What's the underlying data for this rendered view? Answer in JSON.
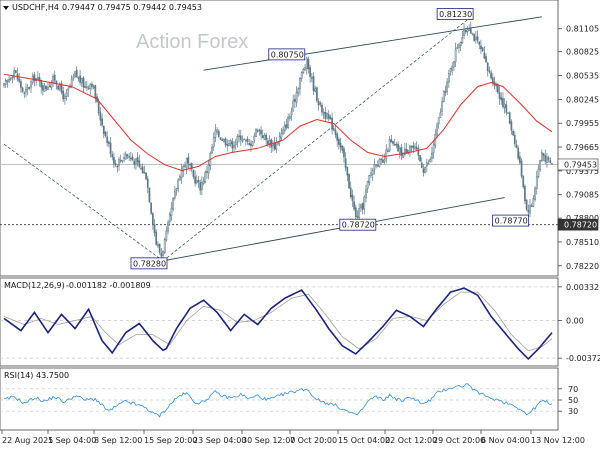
{
  "header": {
    "symbol": "USDCHF,H4",
    "ohlc": "0.79447 0.79475 0.79442 0.79453"
  },
  "watermark": "Action Forex",
  "colors": {
    "candle": "#5a7888",
    "ma": "#e0302a",
    "trendline": "#2a4a52",
    "macd_main": "#1a237e",
    "macd_signal": "#9e9e9e",
    "rsi": "#2f8fdc",
    "label_border": "#1a237e"
  },
  "chart_data": [
    {
      "type": "candlestick",
      "title": "USDCHF,H4",
      "ylim": [
        0.7812,
        0.8143
      ],
      "y_ticks": [
        "0.81105",
        "0.80825",
        "0.80535",
        "0.80245",
        "0.79955",
        "0.79665",
        "0.79375",
        "0.79085",
        "0.78800",
        "0.78510",
        "0.78220"
      ],
      "y_tick_values": [
        0.81105,
        0.80825,
        0.80535,
        0.80245,
        0.79955,
        0.79665,
        0.79375,
        0.79085,
        0.788,
        0.7851,
        0.7822
      ],
      "x_ticks": [
        "22 Aug 2025",
        "1 Sep 04:00",
        "8 Sep 12:00",
        "15 Sep 20:00",
        "23 Sep 04:00",
        "30 Sep 12:00",
        "7 Oct 20:00",
        "15 Oct 04:00",
        "22 Oct 12:00",
        "29 Oct 20:00",
        "6 Nov 04:00",
        "13 Nov 12:00"
      ],
      "current_price": "0.79453",
      "current_price_value": 0.79453,
      "reference_level": "0.78720",
      "reference_level_value": 0.7872,
      "close_path": [
        [
          0,
          0.804
        ],
        [
          6,
          0.806
        ],
        [
          12,
          0.803
        ],
        [
          18,
          0.8052
        ],
        [
          24,
          0.8038
        ],
        [
          30,
          0.805
        ],
        [
          36,
          0.8025
        ],
        [
          42,
          0.8055
        ],
        [
          48,
          0.804
        ],
        [
          52,
          0.8045
        ],
        [
          56,
          0.801
        ],
        [
          60,
          0.798
        ],
        [
          66,
          0.7945
        ],
        [
          72,
          0.7958
        ],
        [
          78,
          0.7948
        ],
        [
          84,
          0.7932
        ],
        [
          87,
          0.789
        ],
        [
          90,
          0.785
        ],
        [
          93,
          0.7835
        ],
        [
          96,
          0.786
        ],
        [
          100,
          0.79
        ],
        [
          104,
          0.7935
        ],
        [
          108,
          0.795
        ],
        [
          112,
          0.793
        ],
        [
          116,
          0.7918
        ],
        [
          120,
          0.7938
        ],
        [
          125,
          0.7985
        ],
        [
          130,
          0.7975
        ],
        [
          135,
          0.797
        ],
        [
          140,
          0.798
        ],
        [
          145,
          0.7968
        ],
        [
          150,
          0.799
        ],
        [
          155,
          0.7975
        ],
        [
          160,
          0.7968
        ],
        [
          165,
          0.7985
        ],
        [
          170,
          0.801
        ],
        [
          175,
          0.805
        ],
        [
          179,
          0.807
        ],
        [
          183,
          0.804
        ],
        [
          187,
          0.8015
        ],
        [
          192,
          0.8
        ],
        [
          196,
          0.7985
        ],
        [
          200,
          0.796
        ],
        [
          204,
          0.792
        ],
        [
          208,
          0.788
        ],
        [
          212,
          0.7895
        ],
        [
          216,
          0.793
        ],
        [
          220,
          0.795
        ],
        [
          224,
          0.7945
        ],
        [
          228,
          0.7972
        ],
        [
          232,
          0.7965
        ],
        [
          236,
          0.7958
        ],
        [
          240,
          0.797
        ],
        [
          244,
          0.796
        ],
        [
          248,
          0.794
        ],
        [
          252,
          0.795
        ],
        [
          256,
          0.799
        ],
        [
          260,
          0.803
        ],
        [
          264,
          0.806
        ],
        [
          268,
          0.809
        ],
        [
          272,
          0.8105
        ],
        [
          275,
          0.8115
        ],
        [
          278,
          0.81
        ],
        [
          282,
          0.8085
        ],
        [
          286,
          0.806
        ],
        [
          290,
          0.8045
        ],
        [
          294,
          0.8025
        ],
        [
          298,
          0.8005
        ],
        [
          302,
          0.7975
        ],
        [
          306,
          0.7935
        ],
        [
          309,
          0.789
        ],
        [
          312,
          0.7895
        ],
        [
          315,
          0.793
        ],
        [
          318,
          0.796
        ],
        [
          321,
          0.795
        ],
        [
          324,
          0.7945
        ]
      ],
      "moving_average": [
        [
          0,
          0.8055
        ],
        [
          20,
          0.8048
        ],
        [
          40,
          0.804
        ],
        [
          55,
          0.8025
        ],
        [
          65,
          0.8
        ],
        [
          75,
          0.7975
        ],
        [
          85,
          0.7958
        ],
        [
          95,
          0.7945
        ],
        [
          105,
          0.7938
        ],
        [
          115,
          0.7943
        ],
        [
          125,
          0.7955
        ],
        [
          135,
          0.796
        ],
        [
          150,
          0.7965
        ],
        [
          165,
          0.7975
        ],
        [
          175,
          0.7992
        ],
        [
          185,
          0.8
        ],
        [
          195,
          0.7995
        ],
        [
          205,
          0.7975
        ],
        [
          215,
          0.796
        ],
        [
          225,
          0.7955
        ],
        [
          240,
          0.796
        ],
        [
          250,
          0.7965
        ],
        [
          260,
          0.7988
        ],
        [
          270,
          0.8018
        ],
        [
          280,
          0.804
        ],
        [
          288,
          0.8045
        ],
        [
          295,
          0.804
        ],
        [
          305,
          0.802
        ],
        [
          315,
          0.7998
        ],
        [
          324,
          0.7985
        ]
      ],
      "trendlines": [
        [
          [
            118,
            0.806
          ],
          [
            318,
            0.8125
          ]
        ],
        [
          [
            94,
            0.7828
          ],
          [
            296,
            0.7905
          ]
        ],
        [
          [
            0,
            0.797
          ],
          [
            94,
            0.7828
          ]
        ],
        [
          [
            94,
            0.7828
          ],
          [
            275,
            0.8123
          ]
        ]
      ],
      "annotations": [
        {
          "text": "0.80750",
          "x": 179,
          "y": 0.8075
        },
        {
          "text": "0.81230",
          "x": 275,
          "y": 0.8123
        },
        {
          "text": "0.78720",
          "x": 208,
          "y": 0.7872
        },
        {
          "text": "0.78770",
          "x": 309,
          "y": 0.7877
        },
        {
          "text": "0.78280",
          "x": 94,
          "y": 0.7828
        }
      ]
    },
    {
      "type": "line",
      "title": "MACD(12,26,9) -0.001182 -0.001809",
      "label": "MACD(12,26,9)",
      "values_text": "-0.001182 -0.001809",
      "ylim": [
        -0.0043,
        0.0038
      ],
      "y_ticks": [
        "0.003321",
        "0.00",
        "-0.003723"
      ],
      "y_tick_values": [
        0.003321,
        0.0,
        -0.003723
      ],
      "series": [
        {
          "values": [
            [
              0,
              0.0002
            ],
            [
              10,
              -0.001
            ],
            [
              18,
              0.0008
            ],
            [
              26,
              -0.0012
            ],
            [
              34,
              0.0006
            ],
            [
              42,
              -0.0008
            ],
            [
              50,
              0.0011
            ],
            [
              58,
              -0.002
            ],
            [
              64,
              -0.0032
            ],
            [
              72,
              -0.0012
            ],
            [
              80,
              -0.0003
            ],
            [
              88,
              -0.002
            ],
            [
              95,
              -0.0031
            ],
            [
              102,
              -0.0008
            ],
            [
              110,
              0.0012
            ],
            [
              118,
              0.002
            ],
            [
              126,
              0.0008
            ],
            [
              134,
              -0.001
            ],
            [
              142,
              0.0006
            ],
            [
              150,
              -0.0004
            ],
            [
              158,
              0.0012
            ],
            [
              166,
              0.0022
            ],
            [
              176,
              0.003
            ],
            [
              184,
              0.0012
            ],
            [
              192,
              -0.0008
            ],
            [
              200,
              -0.0025
            ],
            [
              208,
              -0.0033
            ],
            [
              216,
              -0.002
            ],
            [
              224,
              -0.0006
            ],
            [
              232,
              0.001
            ],
            [
              240,
              0.0004
            ],
            [
              248,
              -0.0006
            ],
            [
              256,
              0.0012
            ],
            [
              264,
              0.0028
            ],
            [
              272,
              0.0032
            ],
            [
              280,
              0.0025
            ],
            [
              288,
              0.0004
            ],
            [
              296,
              -0.0012
            ],
            [
              304,
              -0.0028
            ],
            [
              310,
              -0.0038
            ],
            [
              316,
              -0.0028
            ],
            [
              324,
              -0.0012
            ]
          ]
        },
        {
          "values": [
            [
              0,
              0.0004
            ],
            [
              12,
              -0.0004
            ],
            [
              22,
              0.0002
            ],
            [
              32,
              -0.0004
            ],
            [
              42,
              0.0
            ],
            [
              52,
              0.0004
            ],
            [
              60,
              -0.0012
            ],
            [
              68,
              -0.0024
            ],
            [
              78,
              -0.0014
            ],
            [
              88,
              -0.0014
            ],
            [
              98,
              -0.0024
            ],
            [
              108,
              0.0
            ],
            [
              118,
              0.0014
            ],
            [
              128,
              0.001
            ],
            [
              138,
              -0.0002
            ],
            [
              148,
              0.0
            ],
            [
              158,
              0.0008
            ],
            [
              170,
              0.0022
            ],
            [
              180,
              0.0026
            ],
            [
              190,
              0.0006
            ],
            [
              200,
              -0.0016
            ],
            [
              210,
              -0.0028
            ],
            [
              220,
              -0.0018
            ],
            [
              230,
              0.0002
            ],
            [
              240,
              0.0004
            ],
            [
              250,
              0.0
            ],
            [
              260,
              0.0016
            ],
            [
              270,
              0.0028
            ],
            [
              280,
              0.0028
            ],
            [
              290,
              0.001
            ],
            [
              300,
              -0.0014
            ],
            [
              310,
              -0.003
            ],
            [
              318,
              -0.0026
            ],
            [
              324,
              -0.0018
            ]
          ]
        }
      ]
    },
    {
      "type": "line",
      "title": "RSI(14) 43.7500",
      "label": "RSI(14)",
      "value_text": "43.7500",
      "ylim": [
        0,
        100
      ],
      "y_ticks": [
        "70",
        "50",
        "30"
      ],
      "y_tick_values": [
        70,
        50,
        30
      ],
      "x_ticks": [
        "22 Aug 2025",
        "1 Sep 04:00",
        "8 Sep 12:00",
        "15 Sep 20:00",
        "23 Sep 04:00",
        "30 Sep 12:00",
        "7 Oct 20:00",
        "15 Oct 04:00",
        "22 Oct 12:00",
        "29 Oct 20:00",
        "6 Nov 04:00",
        "13 Nov 12:00"
      ],
      "series": [
        {
          "values": [
            [
              0,
              50
            ],
            [
              6,
              56
            ],
            [
              12,
              44
            ],
            [
              18,
              54
            ],
            [
              24,
              48
            ],
            [
              30,
              56
            ],
            [
              36,
              46
            ],
            [
              42,
              58
            ],
            [
              48,
              50
            ],
            [
              54,
              52
            ],
            [
              58,
              40
            ],
            [
              62,
              30
            ],
            [
              66,
              38
            ],
            [
              72,
              48
            ],
            [
              78,
              42
            ],
            [
              84,
              36
            ],
            [
              88,
              26
            ],
            [
              92,
              22
            ],
            [
              96,
              34
            ],
            [
              100,
              48
            ],
            [
              104,
              58
            ],
            [
              108,
              62
            ],
            [
              112,
              48
            ],
            [
              116,
              44
            ],
            [
              120,
              52
            ],
            [
              125,
              64
            ],
            [
              130,
              56
            ],
            [
              135,
              54
            ],
            [
              140,
              60
            ],
            [
              145,
              52
            ],
            [
              150,
              58
            ],
            [
              155,
              50
            ],
            [
              160,
              54
            ],
            [
              165,
              60
            ],
            [
              170,
              64
            ],
            [
              175,
              68
            ],
            [
              179,
              70
            ],
            [
              183,
              56
            ],
            [
              187,
              48
            ],
            [
              192,
              44
            ],
            [
              196,
              40
            ],
            [
              200,
              34
            ],
            [
              204,
              28
            ],
            [
              208,
              22
            ],
            [
              212,
              34
            ],
            [
              216,
              50
            ],
            [
              220,
              56
            ],
            [
              224,
              50
            ],
            [
              228,
              58
            ],
            [
              232,
              52
            ],
            [
              236,
              48
            ],
            [
              240,
              56
            ],
            [
              244,
              50
            ],
            [
              248,
              42
            ],
            [
              252,
              50
            ],
            [
              256,
              62
            ],
            [
              260,
              68
            ],
            [
              264,
              72
            ],
            [
              268,
              74
            ],
            [
              272,
              76
            ],
            [
              275,
              78
            ],
            [
              278,
              66
            ],
            [
              282,
              62
            ],
            [
              286,
              54
            ],
            [
              290,
              52
            ],
            [
              294,
              48
            ],
            [
              298,
              44
            ],
            [
              302,
              40
            ],
            [
              306,
              32
            ],
            [
              309,
              24
            ],
            [
              312,
              30
            ],
            [
              315,
              40
            ],
            [
              318,
              48
            ],
            [
              321,
              46
            ],
            [
              324,
              44
            ]
          ]
        }
      ]
    }
  ]
}
